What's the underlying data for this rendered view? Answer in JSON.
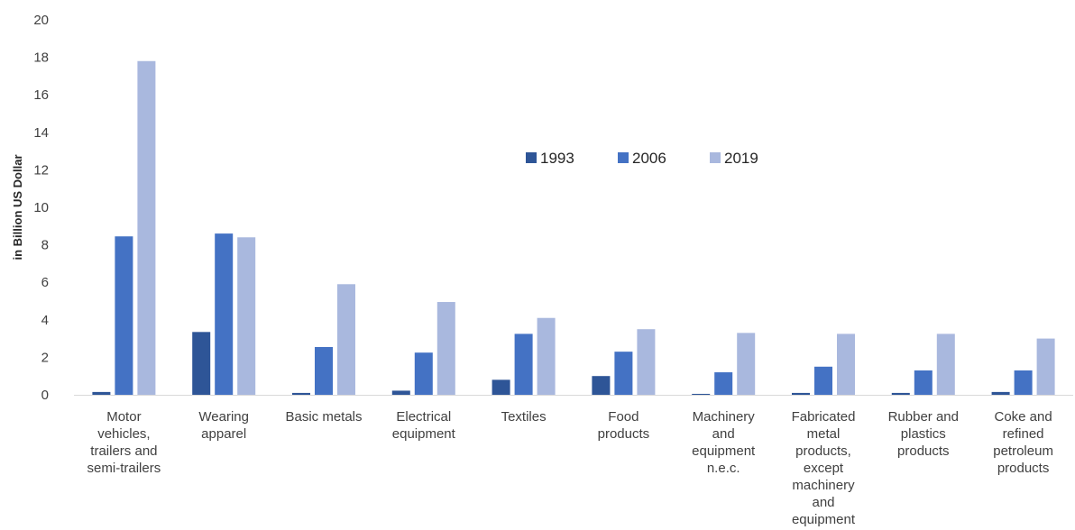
{
  "chart_data": {
    "type": "bar",
    "title": "",
    "xlabel": "",
    "ylabel": "in Billion US Dollar",
    "ylim": [
      0,
      20
    ],
    "yticks": [
      0,
      2,
      4,
      6,
      8,
      10,
      12,
      14,
      16,
      18,
      20
    ],
    "grid": false,
    "legend_position": "center",
    "categories": [
      [
        "Motor",
        "vehicles,",
        "trailers and",
        "semi-trailers"
      ],
      [
        "Wearing",
        "apparel"
      ],
      [
        "Basic metals"
      ],
      [
        "Electrical",
        "equipment"
      ],
      [
        "Textiles"
      ],
      [
        "Food",
        "products"
      ],
      [
        "Machinery",
        "and",
        "equipment",
        "n.e.c."
      ],
      [
        "Fabricated",
        "metal",
        "products,",
        "except",
        "machinery",
        "and",
        "equipment"
      ],
      [
        "Rubber and",
        "plastics",
        "products"
      ],
      [
        "Coke and",
        "refined",
        "petroleum",
        "products"
      ]
    ],
    "series": [
      {
        "name": "1993",
        "color": "#2e5597",
        "values": [
          0.15,
          3.35,
          0.1,
          0.22,
          0.8,
          1.0,
          0.05,
          0.1,
          0.1,
          0.15
        ]
      },
      {
        "name": "2006",
        "color": "#4472c4",
        "values": [
          8.45,
          8.6,
          2.55,
          2.25,
          3.25,
          2.3,
          1.2,
          1.5,
          1.3,
          1.3
        ]
      },
      {
        "name": "2019",
        "color": "#a9b8de",
        "values": [
          17.8,
          8.4,
          5.9,
          4.95,
          4.1,
          3.5,
          3.3,
          3.25,
          3.25,
          3.0
        ]
      }
    ]
  }
}
